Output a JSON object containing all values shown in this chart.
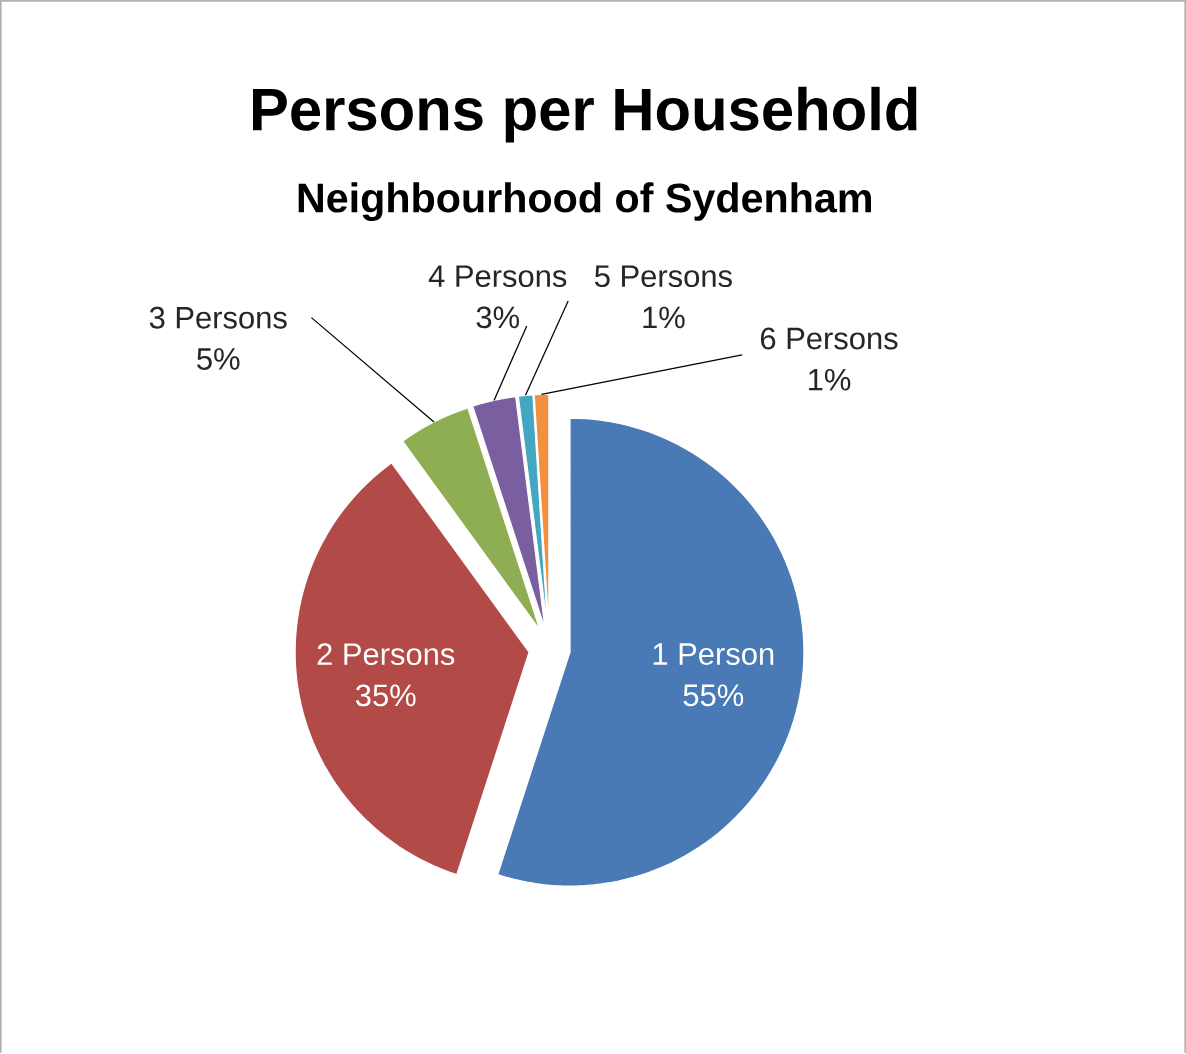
{
  "chart_data": {
    "type": "pie",
    "title": "Persons per Household",
    "subtitle": "Neighbourhood of Sydenham",
    "categories": [
      "1 Person",
      "2 Persons",
      "3 Persons",
      "4 Persons",
      "5 Persons",
      "6 Persons"
    ],
    "values": [
      55,
      35,
      5,
      3,
      1,
      1
    ],
    "value_labels": [
      "55%",
      "35%",
      "5%",
      "3%",
      "1%",
      "1%"
    ],
    "colors": [
      "#4a7ab5",
      "#b24a47",
      "#8fae53",
      "#7a5fa0",
      "#45a6c2",
      "#f0913f"
    ]
  }
}
